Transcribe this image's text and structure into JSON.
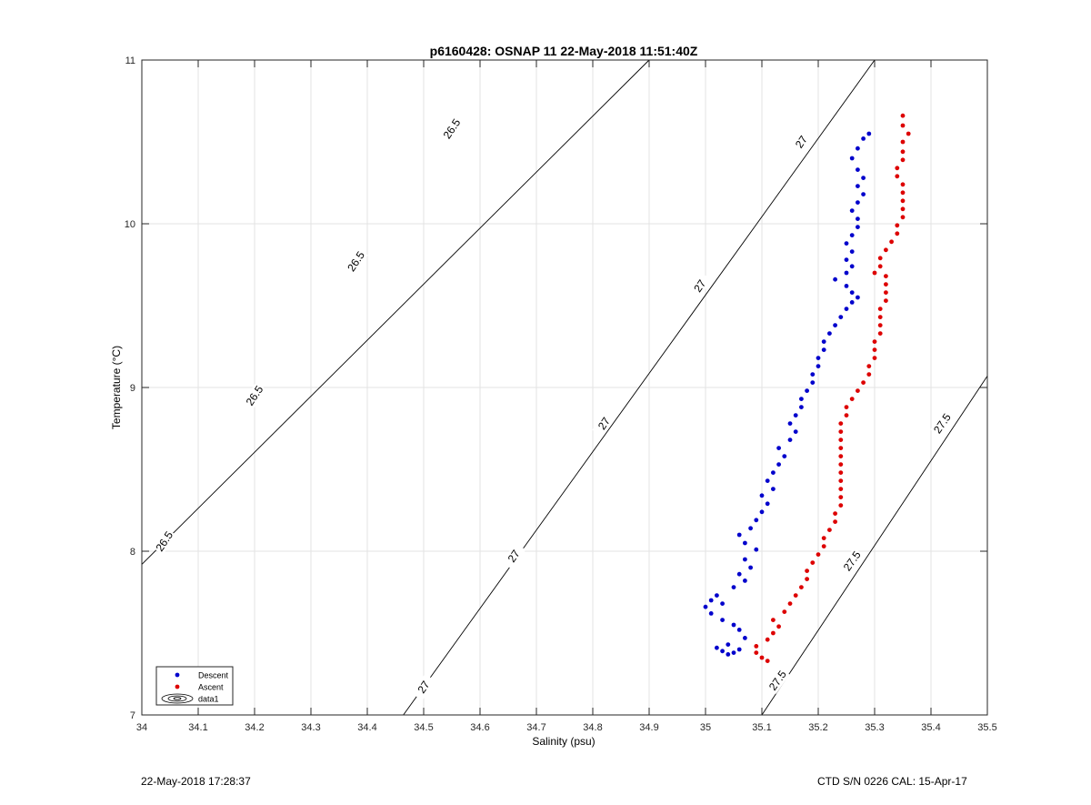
{
  "chart_data": {
    "type": "scatter",
    "title": "p6160428: OSNAP 11 22-May-2018 11:51:40Z",
    "xlabel": "Salinity (psu)",
    "ylabel": "Temperature (°C)",
    "xlim": [
      34,
      35.5
    ],
    "ylim": [
      7,
      11
    ],
    "xticks": [
      34,
      34.1,
      34.2,
      34.3,
      34.4,
      34.5,
      34.6,
      34.7,
      34.8,
      34.9,
      35,
      35.1,
      35.2,
      35.3,
      35.4,
      35.5
    ],
    "xtick_labels": [
      "34",
      "34.1",
      "34.2",
      "34.3",
      "34.4",
      "34.5",
      "34.6",
      "34.7",
      "34.8",
      "34.9",
      "35",
      "35.1",
      "35.2",
      "35.3",
      "35.4",
      "35.5"
    ],
    "yticks": [
      7,
      8,
      9,
      10,
      11
    ],
    "ytick_labels": [
      "7",
      "8",
      "9",
      "10",
      "11"
    ],
    "grid": true,
    "legend_position": "bottom-left",
    "contours": [
      {
        "level": "26.5",
        "points": [
          [
            34.0,
            7.92
          ],
          [
            34.9,
            11.0
          ]
        ],
        "labels": [
          {
            "s": 34.04,
            "t": 8.06,
            "angle": -56
          },
          {
            "s": 34.2,
            "t": 8.95,
            "angle": -56
          },
          {
            "s": 34.38,
            "t": 9.77,
            "angle": -56
          },
          {
            "s": 34.55,
            "t": 10.58,
            "angle": -56
          }
        ]
      },
      {
        "level": "27",
        "points": [
          [
            34.464,
            7.0
          ],
          [
            35.3,
            11.0
          ]
        ],
        "labels": [
          {
            "s": 34.5,
            "t": 7.17,
            "angle": -56
          },
          {
            "s": 34.66,
            "t": 7.97,
            "angle": -56
          },
          {
            "s": 34.82,
            "t": 8.78,
            "angle": -56
          },
          {
            "s": 34.99,
            "t": 9.62,
            "angle": -56
          },
          {
            "s": 35.17,
            "t": 10.5,
            "angle": -56
          }
        ]
      },
      {
        "level": "27.5",
        "points": [
          [
            35.1,
            7.0
          ],
          [
            35.5,
            9.07
          ]
        ],
        "labels": [
          {
            "s": 35.128,
            "t": 7.21,
            "angle": -55
          },
          {
            "s": 35.26,
            "t": 7.94,
            "angle": -55
          },
          {
            "s": 35.42,
            "t": 8.78,
            "angle": -55
          }
        ]
      }
    ],
    "series": [
      {
        "name": "Descent",
        "color": "#0000cc",
        "points": [
          [
            35.05,
            7.38
          ],
          [
            35.04,
            7.37
          ],
          [
            35.03,
            7.39
          ],
          [
            35.02,
            7.41
          ],
          [
            35.04,
            7.43
          ],
          [
            35.06,
            7.4
          ],
          [
            35.07,
            7.47
          ],
          [
            35.06,
            7.52
          ],
          [
            35.05,
            7.55
          ],
          [
            35.03,
            7.58
          ],
          [
            35.01,
            7.62
          ],
          [
            35.0,
            7.66
          ],
          [
            35.01,
            7.7
          ],
          [
            35.03,
            7.68
          ],
          [
            35.02,
            7.73
          ],
          [
            35.05,
            7.78
          ],
          [
            35.07,
            7.82
          ],
          [
            35.06,
            7.86
          ],
          [
            35.08,
            7.9
          ],
          [
            35.07,
            7.95
          ],
          [
            35.09,
            8.01
          ],
          [
            35.07,
            8.05
          ],
          [
            35.06,
            8.1
          ],
          [
            35.08,
            8.14
          ],
          [
            35.09,
            8.19
          ],
          [
            35.1,
            8.24
          ],
          [
            35.11,
            8.29
          ],
          [
            35.1,
            8.34
          ],
          [
            35.12,
            8.38
          ],
          [
            35.11,
            8.43
          ],
          [
            35.12,
            8.48
          ],
          [
            35.13,
            8.53
          ],
          [
            35.14,
            8.58
          ],
          [
            35.13,
            8.63
          ],
          [
            35.15,
            8.68
          ],
          [
            35.16,
            8.73
          ],
          [
            35.15,
            8.78
          ],
          [
            35.16,
            8.83
          ],
          [
            35.17,
            8.88
          ],
          [
            35.17,
            8.93
          ],
          [
            35.18,
            8.98
          ],
          [
            35.19,
            9.03
          ],
          [
            35.19,
            9.08
          ],
          [
            35.2,
            9.13
          ],
          [
            35.2,
            9.18
          ],
          [
            35.21,
            9.23
          ],
          [
            35.21,
            9.28
          ],
          [
            35.22,
            9.33
          ],
          [
            35.23,
            9.38
          ],
          [
            35.24,
            9.43
          ],
          [
            35.25,
            9.48
          ],
          [
            35.26,
            9.52
          ],
          [
            35.27,
            9.55
          ],
          [
            35.26,
            9.58
          ],
          [
            35.25,
            9.62
          ],
          [
            35.23,
            9.66
          ],
          [
            35.25,
            9.7
          ],
          [
            35.26,
            9.74
          ],
          [
            35.25,
            9.78
          ],
          [
            35.26,
            9.83
          ],
          [
            35.25,
            9.88
          ],
          [
            35.26,
            9.93
          ],
          [
            35.27,
            9.98
          ],
          [
            35.27,
            10.03
          ],
          [
            35.26,
            10.08
          ],
          [
            35.27,
            10.13
          ],
          [
            35.28,
            10.18
          ],
          [
            35.27,
            10.23
          ],
          [
            35.28,
            10.28
          ],
          [
            35.27,
            10.33
          ],
          [
            35.26,
            10.4
          ],
          [
            35.27,
            10.46
          ],
          [
            35.28,
            10.52
          ],
          [
            35.29,
            10.55
          ]
        ]
      },
      {
        "name": "Ascent",
        "color": "#dd0000",
        "points": [
          [
            35.11,
            7.33
          ],
          [
            35.1,
            7.35
          ],
          [
            35.09,
            7.38
          ],
          [
            35.09,
            7.42
          ],
          [
            35.11,
            7.46
          ],
          [
            35.12,
            7.5
          ],
          [
            35.13,
            7.54
          ],
          [
            35.12,
            7.58
          ],
          [
            35.14,
            7.63
          ],
          [
            35.15,
            7.68
          ],
          [
            35.16,
            7.73
          ],
          [
            35.17,
            7.78
          ],
          [
            35.18,
            7.83
          ],
          [
            35.18,
            7.88
          ],
          [
            35.19,
            7.93
          ],
          [
            35.2,
            7.98
          ],
          [
            35.21,
            8.03
          ],
          [
            35.21,
            8.08
          ],
          [
            35.22,
            8.13
          ],
          [
            35.23,
            8.18
          ],
          [
            35.23,
            8.23
          ],
          [
            35.24,
            8.28
          ],
          [
            35.24,
            8.33
          ],
          [
            35.24,
            8.38
          ],
          [
            35.24,
            8.43
          ],
          [
            35.24,
            8.48
          ],
          [
            35.24,
            8.53
          ],
          [
            35.24,
            8.58
          ],
          [
            35.24,
            8.63
          ],
          [
            35.24,
            8.68
          ],
          [
            35.24,
            8.73
          ],
          [
            35.24,
            8.78
          ],
          [
            35.25,
            8.83
          ],
          [
            35.25,
            8.88
          ],
          [
            35.26,
            8.93
          ],
          [
            35.27,
            8.98
          ],
          [
            35.28,
            9.03
          ],
          [
            35.29,
            9.08
          ],
          [
            35.29,
            9.13
          ],
          [
            35.3,
            9.18
          ],
          [
            35.3,
            9.23
          ],
          [
            35.3,
            9.28
          ],
          [
            35.31,
            9.33
          ],
          [
            35.31,
            9.38
          ],
          [
            35.31,
            9.43
          ],
          [
            35.31,
            9.48
          ],
          [
            35.32,
            9.53
          ],
          [
            35.32,
            9.58
          ],
          [
            35.32,
            9.63
          ],
          [
            35.32,
            9.68
          ],
          [
            35.3,
            9.7
          ],
          [
            35.31,
            9.74
          ],
          [
            35.31,
            9.79
          ],
          [
            35.32,
            9.84
          ],
          [
            35.33,
            9.89
          ],
          [
            35.34,
            9.94
          ],
          [
            35.34,
            9.99
          ],
          [
            35.35,
            10.04
          ],
          [
            35.35,
            10.09
          ],
          [
            35.35,
            10.14
          ],
          [
            35.35,
            10.19
          ],
          [
            35.35,
            10.24
          ],
          [
            35.34,
            10.29
          ],
          [
            35.34,
            10.34
          ],
          [
            35.35,
            10.39
          ],
          [
            35.35,
            10.44
          ],
          [
            35.35,
            10.5
          ],
          [
            35.36,
            10.55
          ],
          [
            35.35,
            10.6
          ],
          [
            35.35,
            10.66
          ]
        ]
      }
    ],
    "legend": [
      {
        "label": "Descent",
        "marker": "dot",
        "color": "#0000cc"
      },
      {
        "label": "Ascent",
        "marker": "dot",
        "color": "#dd0000"
      },
      {
        "label": "data1",
        "marker": "contour",
        "color": "#000000"
      }
    ]
  },
  "footer": {
    "left": "22-May-2018 17:28:37",
    "right": "CTD S/N 0226  CAL: 15-Apr-17"
  }
}
